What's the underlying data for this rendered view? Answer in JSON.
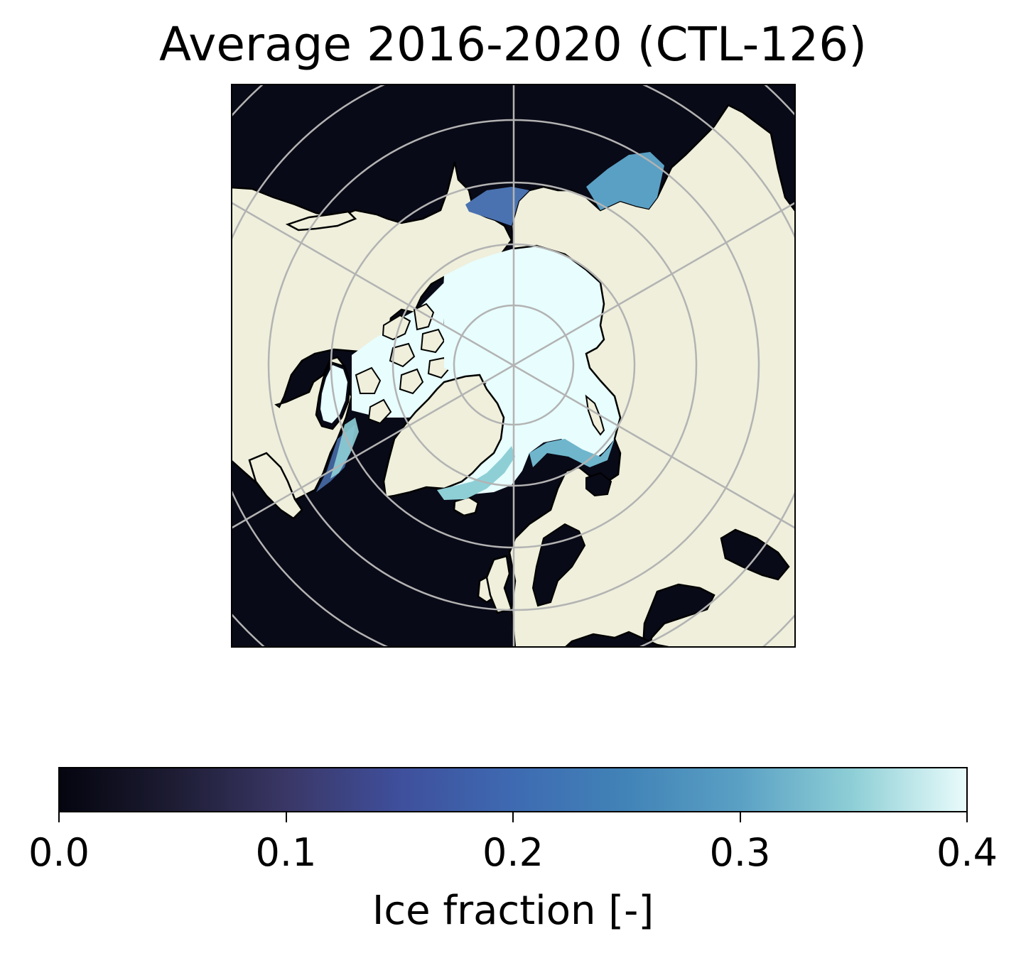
{
  "title": "Average 2016-2020 (CTL-126)",
  "map": {
    "projection": "north-polar-stereographic",
    "variable": "sea ice fraction",
    "colors": {
      "ocean_open": "#090a17",
      "ice_high": "#e8fdfd",
      "land": "#efefdc",
      "coastline": "#000000",
      "graticule": "#b3b3b3"
    }
  },
  "colorbar": {
    "label": "Ice fraction [-]",
    "colormap": "ice",
    "range": [
      0.0,
      0.4
    ],
    "ticks": [
      "0.0",
      "0.1",
      "0.2",
      "0.3",
      "0.4"
    ],
    "orientation": "horizontal",
    "stops": [
      "#04050f",
      "#1d1c33",
      "#3a3766",
      "#3f4f9c",
      "#3e6ab2",
      "#4183b7",
      "#5aa0c4",
      "#8ecfd6",
      "#e9fbfb"
    ]
  }
}
